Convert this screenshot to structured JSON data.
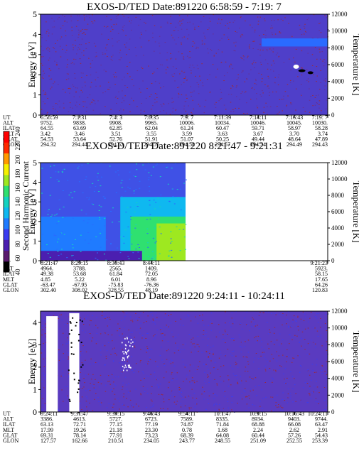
{
  "panels": [
    {
      "title": "EXOS-D/TED   Date:891220  6:58:59 - 7:19: 7",
      "ylabel_left": "Energy [eV]",
      "ylabel_right": "Temperature [K]",
      "left_ticks": [
        "0",
        "1",
        "2",
        "3",
        "4",
        "5"
      ],
      "right_ticks": [
        "0",
        "2000",
        "4000",
        "6000",
        "8000",
        "10000",
        "12000"
      ],
      "data_kind": "uniform",
      "table": {
        "row_labels": [
          "UT",
          "ALT",
          "ILAT",
          "MLT",
          "GLAT",
          "GLON"
        ],
        "cols": [
          [
            "6:58:59",
            "9752.",
            "64.55",
            "3.42",
            "54.53",
            "294.32"
          ],
          [
            "7:1:31",
            "9838.",
            "63.69",
            "3.46",
            "53.64",
            "294.44"
          ],
          [
            "7:4: 3",
            "9908.",
            "62.85",
            "3.51",
            "52.76",
            "294.52"
          ],
          [
            "7:6:35",
            "9965.",
            "62.04",
            "3.55",
            "51.91",
            "294.57"
          ],
          [
            "7:9: 7",
            "10006.",
            "61.24",
            "3.59",
            "51.07",
            "294.58"
          ],
          [
            "7:11:39",
            "10034.",
            "60.47",
            "3.63",
            "50.25",
            "294.57"
          ],
          [
            "7:14:11",
            "10046.",
            "59.71",
            "3.67",
            "49.44",
            "294.54"
          ],
          [
            "7:16:43",
            "10045.",
            "58.97",
            "3.70",
            "48.64",
            "294.49"
          ],
          [
            "7:19: 7",
            "10030.",
            "58.28",
            "3.74",
            "47.89",
            "294.43"
          ]
        ]
      }
    },
    {
      "title": "EXOS-D/TED   Date:891220  8:21:47 - 9:21:31",
      "ylabel_left": "Energy [eV]",
      "ylabel_right": "Temperature [K]",
      "left_ticks": [
        "0",
        "1",
        "2",
        "3",
        "4",
        "5"
      ],
      "right_ticks": [
        "0",
        "2000",
        "4000",
        "6000",
        "8000",
        "10000",
        "12000"
      ],
      "data_kind": "partial",
      "table": {
        "row_labels": [
          "UT",
          "ALT",
          "ILAT",
          "MLT",
          "GLAT",
          "GLON"
        ],
        "cols": [
          [
            "8:21:47",
            "4964.",
            "49.38",
            "4.85",
            "-63.47",
            "302.40"
          ],
          [
            "8:29:15",
            "3788.",
            "53.68",
            "5.22",
            "-67.95",
            "308.02"
          ],
          [
            "8:36:43",
            "2565.",
            "61.84",
            "6.01",
            "-75.83",
            "328.55"
          ],
          [
            "8:44:11",
            "1409.",
            "72.05",
            "8.96",
            "-76.36",
            "48.19"
          ],
          [
            "9:21:23",
            "5923.",
            "58.15",
            "17.65",
            "64.26",
            "120.83"
          ]
        ]
      }
    },
    {
      "title": "EXOS-D/TED   Date:891220  9:24:11 - 10:24:11",
      "ylabel_left": "Energy [eV]",
      "ylabel_right": "Temperature [K]",
      "left_ticks": [
        "0",
        "1",
        "2",
        "3",
        "4"
      ],
      "right_ticks": [
        "0",
        "2000",
        "4000",
        "6000",
        "8000",
        "10000",
        "12000"
      ],
      "data_kind": "gaps",
      "table": {
        "row_labels": [
          "UT",
          "ALT",
          "ILAT",
          "MLT",
          "GLAT",
          "GLON"
        ],
        "cols": [
          [
            "9:24:11",
            "3386.",
            "63.13",
            "17.99",
            "69.31",
            "127.57"
          ],
          [
            "9:31:47",
            "4613.",
            "72.71",
            "19.26",
            "78.14",
            "162.66"
          ],
          [
            "9:39:15",
            "5727.",
            "77.15",
            "21.18",
            "77.91",
            "210.51"
          ],
          [
            "9:46:43",
            "6723.",
            "77.19",
            "23.30",
            "73.23",
            "234.05"
          ],
          [
            "9:54:11",
            "7589.",
            "74.87",
            "0.78",
            "68.39",
            "243.77"
          ],
          [
            "10:1:47",
            "8335.",
            "71.84",
            "1.68",
            "64.08",
            "248.55"
          ],
          [
            "10:9:15",
            "8934.",
            "68.88",
            "2.24",
            "60.44",
            "251.09"
          ],
          [
            "10:16:43",
            "9403.",
            "66.08",
            "2.62",
            "57.26",
            "252.55"
          ],
          [
            "10:24:11",
            "9744.",
            "63.47",
            "2.91",
            "54.43",
            "253.39"
          ]
        ]
      }
    }
  ],
  "colorbar": {
    "label": "Second Harmonic Current",
    "ticks": [
      "40",
      "60",
      "80",
      "100",
      "120",
      "140",
      "160",
      "180",
      "200",
      "220",
      "240"
    ],
    "colors": [
      "#000000",
      "#5a1a6e",
      "#4b1fb0",
      "#3a3cf0",
      "#1f7bff",
      "#0fb8f0",
      "#14d2c0",
      "#2fe070",
      "#9ee820",
      "#f5f000",
      "#ff9a00",
      "#ff2a00",
      "#ff0000"
    ]
  },
  "chart_data": [
    {
      "type": "heatmap",
      "title": "EXOS-D/TED   Date:891220  6:58:59 - 7:19: 7",
      "x": [
        "6:58:59",
        "7:1:31",
        "7:4: 3",
        "7:6:35",
        "7:9: 7",
        "7:11:39",
        "7:14:11",
        "7:16:43",
        "7:19: 7"
      ],
      "ylabel": "Energy [eV]",
      "ylim": [
        0,
        5
      ],
      "y2label": "Temperature [K]",
      "y2lim": [
        0,
        12000
      ],
      "colorbar_label": "Second Harmonic Current",
      "colorbar_range": [
        40,
        240
      ]
    },
    {
      "type": "heatmap",
      "title": "EXOS-D/TED   Date:891220  8:21:47 - 9:21:31",
      "x": [
        "8:21:47",
        "8:29:15",
        "8:36:43",
        "8:44:11",
        "9:21:23"
      ],
      "ylabel": "Energy [eV]",
      "ylim": [
        0,
        5
      ],
      "y2label": "Temperature [K]",
      "y2lim": [
        0,
        12000
      ],
      "colorbar_label": "Second Harmonic Current",
      "colorbar_range": [
        40,
        240
      ]
    },
    {
      "type": "heatmap",
      "title": "EXOS-D/TED   Date:891220  9:24:11 - 10:24:11",
      "x": [
        "9:24:11",
        "9:31:47",
        "9:39:15",
        "9:46:43",
        "9:54:11",
        "10:1:47",
        "10:9:15",
        "10:16:43",
        "10:24:11"
      ],
      "ylabel": "Energy [eV]",
      "ylim": [
        0,
        5
      ],
      "y2label": "Temperature [K]",
      "y2lim": [
        0,
        12000
      ],
      "colorbar_label": "Second Harmonic Current",
      "colorbar_range": [
        40,
        240
      ]
    }
  ]
}
